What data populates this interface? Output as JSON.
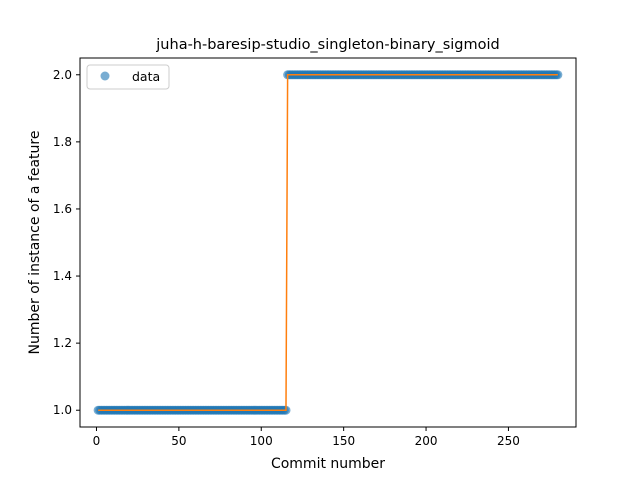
{
  "chart_data": {
    "type": "scatter",
    "title": "juha-h-baresip-studio_singleton-binary_sigmoid",
    "xlabel": "Commit number",
    "ylabel": "Number of instance of a feature",
    "xlim": [
      -10,
      291
    ],
    "ylim": [
      0.95,
      2.05
    ],
    "xticks": [
      0,
      50,
      100,
      150,
      200,
      250
    ],
    "yticks": [
      1.0,
      1.2,
      1.4,
      1.6,
      1.8,
      2.0
    ],
    "xtick_labels": [
      "0",
      "50",
      "100",
      "150",
      "200",
      "250"
    ],
    "ytick_labels": [
      "1.0",
      "1.2",
      "1.4",
      "1.6",
      "1.8",
      "2.0"
    ],
    "legend": {
      "position": "top-left",
      "entries": [
        "data"
      ]
    },
    "colors": {
      "points": "#1f77b4",
      "fit": "#ff7f0e"
    },
    "series": [
      {
        "name": "data",
        "kind": "points",
        "segments": [
          {
            "x_start": 1,
            "x_end": 115,
            "y": 1.0
          },
          {
            "x_start": 116,
            "x_end": 280,
            "y": 2.0
          }
        ]
      },
      {
        "kind": "line",
        "x": [
          1,
          115,
          116,
          280
        ],
        "y": [
          1.0,
          1.0,
          2.0,
          2.0
        ]
      }
    ]
  }
}
